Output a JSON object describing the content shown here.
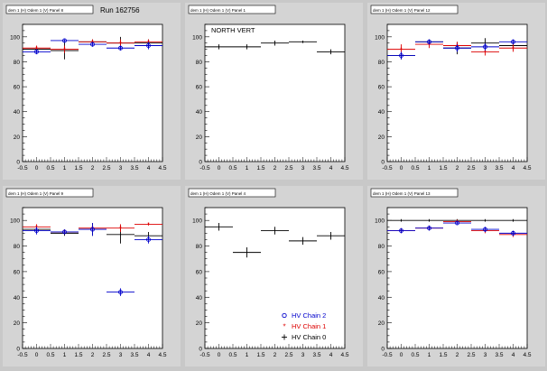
{
  "run_label": "Run 162756",
  "colors": {
    "chain2": "#0000cc",
    "chain1": "#dd0000",
    "chain0": "#000000",
    "frame": "#000000",
    "pad_bg": "#d4d4d4",
    "plot_bg": "#ffffff"
  },
  "legend": {
    "entries": [
      {
        "label": "HV Chain 2",
        "color": "#0000cc",
        "marker": "open-circle"
      },
      {
        "label": "HV Chain 1",
        "color": "#dd0000",
        "marker": "star"
      },
      {
        "label": "HV Chain 0",
        "color": "#000000",
        "marker": "plus"
      }
    ]
  },
  "chart_data": [
    {
      "type": "scatter",
      "title": "dem 1 (H) Odem 1 (V) Panel 8",
      "annotation": "Run 162756",
      "xlim": [
        -0.5,
        4.5
      ],
      "ylim": [
        0,
        110
      ],
      "xticks": [
        -0.5,
        0,
        0.5,
        1,
        1.5,
        2,
        2.5,
        3,
        3.5,
        4,
        4.5
      ],
      "yticks": [
        0,
        20,
        40,
        60,
        80,
        100
      ],
      "series": [
        {
          "color": "#000000",
          "x": [
            0,
            1,
            2,
            3,
            4
          ],
          "y": [
            90,
            89,
            96,
            95,
            95
          ],
          "yerr": [
            2,
            7,
            2,
            5,
            3
          ]
        },
        {
          "color": "#dd0000",
          "x": [
            0,
            1,
            2,
            3,
            4
          ],
          "y": [
            91,
            90,
            96,
            95,
            96
          ],
          "yerr": [
            2,
            3,
            2,
            3,
            2
          ]
        },
        {
          "color": "#0000cc",
          "x": [
            0,
            1,
            2,
            3,
            4
          ],
          "y": [
            88,
            97,
            94,
            91,
            93
          ],
          "yerr": [
            2,
            1,
            2,
            2,
            3
          ]
        }
      ]
    },
    {
      "type": "scatter",
      "title": "dem 1 (H) Odem 1 (V) Panel 1",
      "annotation": "NORTH VERT",
      "xlim": [
        -0.5,
        4.5
      ],
      "ylim": [
        0,
        110
      ],
      "xticks": [
        -0.5,
        0,
        0.5,
        1,
        1.5,
        2,
        2.5,
        3,
        3.5,
        4,
        4.5
      ],
      "yticks": [
        0,
        20,
        40,
        60,
        80,
        100
      ],
      "series": [
        {
          "color": "#000000",
          "x": [
            0,
            1,
            2,
            3,
            4
          ],
          "y": [
            92,
            92,
            95,
            96,
            88
          ],
          "yerr": [
            2,
            2,
            2,
            1,
            2
          ]
        }
      ]
    },
    {
      "type": "scatter",
      "title": "dem 1 (H) Odem 1 (V) Panel 12",
      "annotation": "",
      "xlim": [
        -0.5,
        4.5
      ],
      "ylim": [
        0,
        110
      ],
      "xticks": [
        -0.5,
        0,
        0.5,
        1,
        1.5,
        2,
        2.5,
        3,
        3.5,
        4,
        4.5
      ],
      "yticks": [
        0,
        20,
        40,
        60,
        80,
        100
      ],
      "series": [
        {
          "color": "#000000",
          "x": [
            0,
            1,
            2,
            3,
            4
          ],
          "y": [
            85,
            96,
            91,
            95,
            93
          ],
          "yerr": [
            3,
            2,
            5,
            4,
            3
          ]
        },
        {
          "color": "#dd0000",
          "x": [
            0,
            1,
            2,
            3,
            4
          ],
          "y": [
            90,
            94,
            93,
            88,
            91
          ],
          "yerr": [
            4,
            3,
            3,
            3,
            3
          ]
        },
        {
          "color": "#0000cc",
          "x": [
            0,
            1,
            2,
            3,
            4
          ],
          "y": [
            85,
            96,
            91,
            92,
            96
          ],
          "yerr": [
            3,
            2,
            3,
            3,
            2
          ]
        }
      ]
    },
    {
      "type": "scatter",
      "title": "dem 1 (H) Odem 1 (V) Panel 9",
      "annotation": "",
      "xlim": [
        -0.5,
        4.5
      ],
      "ylim": [
        0,
        110
      ],
      "xticks": [
        -0.5,
        0,
        0.5,
        1,
        1.5,
        2,
        2.5,
        3,
        3.5,
        4,
        4.5
      ],
      "yticks": [
        0,
        20,
        40,
        60,
        80,
        100
      ],
      "series": [
        {
          "color": "#000000",
          "x": [
            0,
            1,
            2,
            3,
            4
          ],
          "y": [
            93,
            90,
            93,
            89,
            88
          ],
          "yerr": [
            2,
            2,
            5,
            7,
            3
          ]
        },
        {
          "color": "#dd0000",
          "x": [
            0,
            1,
            2,
            3,
            4
          ],
          "y": [
            95,
            91,
            94,
            94,
            97
          ],
          "yerr": [
            2,
            2,
            2,
            3,
            1
          ]
        },
        {
          "color": "#0000cc",
          "x": [
            0,
            1,
            2,
            3,
            4
          ],
          "y": [
            92,
            91,
            93,
            44,
            85
          ],
          "yerr": [
            3,
            2,
            5,
            3,
            3
          ]
        }
      ]
    },
    {
      "type": "scatter",
      "title": "dem 1 (H) Odem 1 (V) Panel 4",
      "annotation": "",
      "xlim": [
        -0.5,
        4.5
      ],
      "ylim": [
        0,
        110
      ],
      "xticks": [
        -0.5,
        0,
        0.5,
        1,
        1.5,
        2,
        2.5,
        3,
        3.5,
        4,
        4.5
      ],
      "yticks": [
        0,
        20,
        40,
        60,
        80,
        100
      ],
      "series": [
        {
          "color": "#000000",
          "x": [
            0,
            1,
            2,
            3,
            4
          ],
          "y": [
            95,
            75,
            92,
            84,
            88
          ],
          "yerr": [
            3,
            4,
            3,
            3,
            3
          ]
        }
      ]
    },
    {
      "type": "scatter",
      "title": "dem 1 (H) Odem 1 (V) Panel 13",
      "annotation": "",
      "xlim": [
        -0.5,
        4.5
      ],
      "ylim": [
        0,
        110
      ],
      "xticks": [
        -0.5,
        0,
        0.5,
        1,
        1.5,
        2,
        2.5,
        3,
        3.5,
        4,
        4.5
      ],
      "yticks": [
        0,
        20,
        40,
        60,
        80,
        100
      ],
      "series": [
        {
          "color": "#000000",
          "x": [
            0,
            1,
            2,
            3,
            4
          ],
          "y": [
            100,
            100,
            100,
            100,
            100
          ],
          "yerr": [
            1,
            1,
            1,
            1,
            1
          ]
        },
        {
          "color": "#dd0000",
          "x": [
            0,
            1,
            2,
            3,
            4
          ],
          "y": [
            92,
            94,
            99,
            92,
            89
          ],
          "yerr": [
            2,
            2,
            1,
            2,
            2
          ]
        },
        {
          "color": "#0000cc",
          "x": [
            0,
            1,
            2,
            3,
            4
          ],
          "y": [
            92,
            94,
            98,
            93,
            90
          ],
          "yerr": [
            2,
            2,
            1,
            2,
            2
          ]
        }
      ]
    }
  ]
}
